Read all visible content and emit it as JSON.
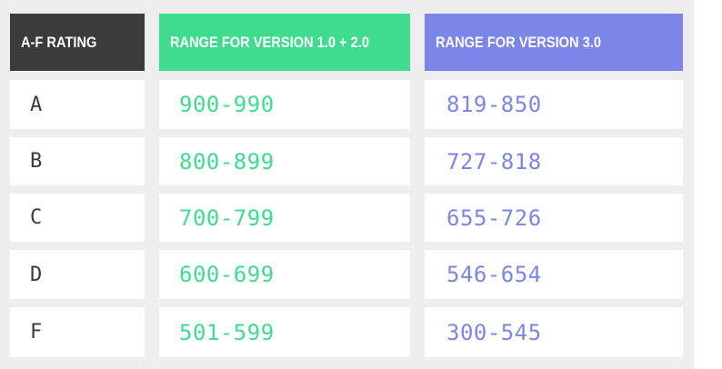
{
  "colors": {
    "header_rating": "#3b3b3b",
    "header_v12": "#3fdc8e",
    "header_v3": "#7b86e8",
    "text_v12": "#3fdc8e",
    "text_v3": "#7b86e8",
    "background": "#eeeeee"
  },
  "headers": {
    "rating": "A-F RATING",
    "v12": "RANGE FOR VERSION 1.0 + 2.0",
    "v3": "RANGE FOR VERSION 3.0"
  },
  "rows": [
    {
      "grade": "A",
      "v12": "900-990",
      "v3": "819-850"
    },
    {
      "grade": "B",
      "v12": "800-899",
      "v3": "727-818"
    },
    {
      "grade": "C",
      "v12": "700-799",
      "v3": "655-726"
    },
    {
      "grade": "D",
      "v12": "600-699",
      "v3": "546-654"
    },
    {
      "grade": "F",
      "v12": "501-599",
      "v3": "300-545"
    }
  ]
}
